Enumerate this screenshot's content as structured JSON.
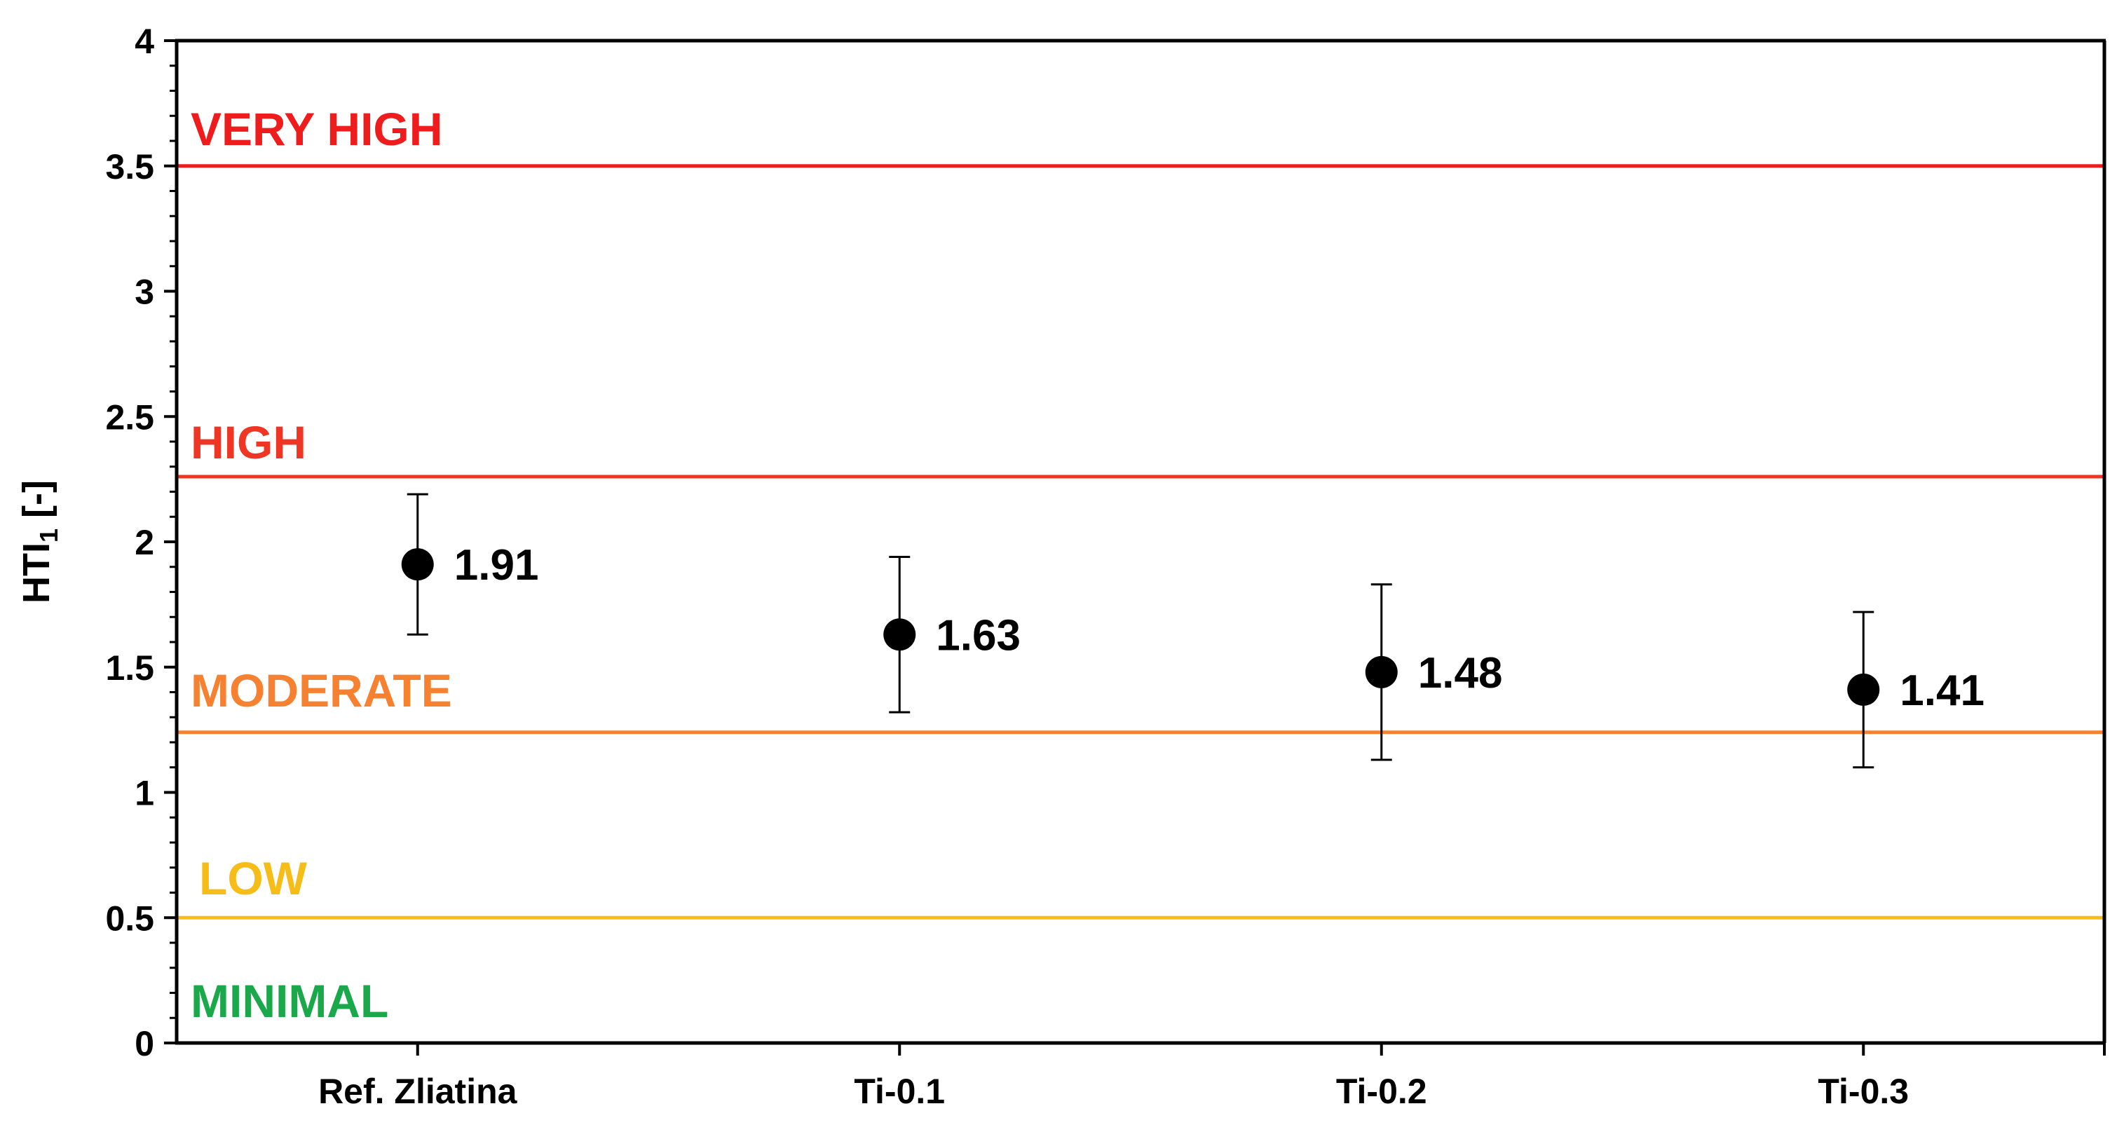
{
  "chart_data": {
    "type": "scatter",
    "categories": [
      "Ref. Zliatina",
      "Ti-0.1",
      "Ti-0.2",
      "Ti-0.3"
    ],
    "series": [
      {
        "values": [
          1.91,
          1.63,
          1.48,
          1.41
        ],
        "error_low": [
          1.63,
          1.32,
          1.13,
          1.1
        ],
        "error_high": [
          2.19,
          1.94,
          1.83,
          1.72
        ],
        "data_labels": [
          "1.91",
          "1.63",
          "1.48",
          "1.41"
        ],
        "color": "#000000"
      }
    ],
    "ylabel": {
      "main": "HTI",
      "subscript": "1",
      "suffix": " [-]"
    },
    "ylim": [
      0,
      4
    ],
    "yticks": [
      0,
      0.5,
      1,
      1.5,
      2,
      2.5,
      3,
      3.5,
      4
    ],
    "ytick_labels": [
      "0",
      "0.5",
      "1",
      "1.5",
      "2",
      "2.5",
      "3",
      "3.5",
      "4"
    ],
    "grid": false,
    "thresholds": [
      {
        "name": "VERY HIGH",
        "value": 3.5,
        "color": "#ee1c1c"
      },
      {
        "name": "HIGH",
        "value": 2.26,
        "color": "#ef3524"
      },
      {
        "name": "MODERATE",
        "value": 1.24,
        "color": "#f58131"
      },
      {
        "name": "LOW",
        "value": 0.5,
        "color": "#f6bd18"
      }
    ],
    "zone_labels": [
      {
        "text": "VERY HIGH",
        "value": 3.65,
        "color": "#ee1c1c"
      },
      {
        "text": "HIGH",
        "value": 2.4,
        "color": "#ef3524"
      },
      {
        "text": "MODERATE",
        "value": 1.41,
        "color": "#f58131"
      },
      {
        "text": "LOW",
        "value": 0.66,
        "color": "#f6bd18"
      },
      {
        "text": "MINIMAL",
        "value": 0.17,
        "color": "#1ba84b"
      }
    ]
  }
}
